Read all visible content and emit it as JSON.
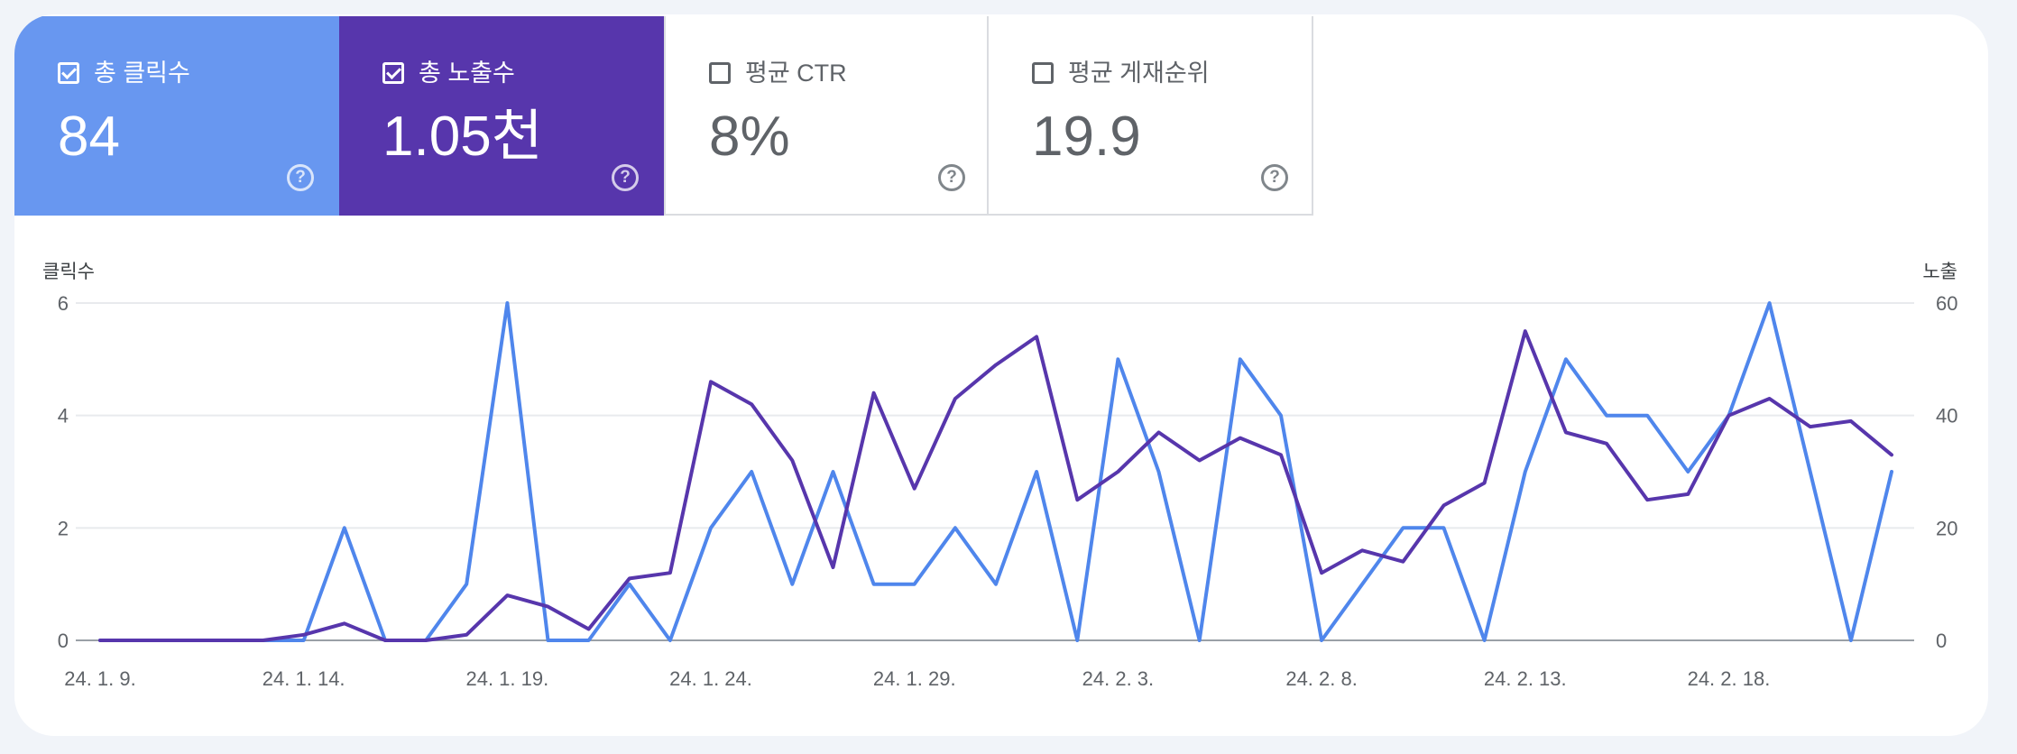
{
  "metrics": [
    {
      "label": "총 클릭수",
      "value": "84",
      "checked": true,
      "color": "#6897f0",
      "help_icon": "?"
    },
    {
      "label": "총 노출수",
      "value": "1.05천",
      "checked": true,
      "color": "#5736ac",
      "help_icon": "?"
    },
    {
      "label": "평균 CTR",
      "value": "8%",
      "checked": false,
      "color": "#ffffff",
      "help_icon": "?"
    },
    {
      "label": "평균 게재순위",
      "value": "19.9",
      "checked": false,
      "color": "#ffffff",
      "help_icon": "?"
    }
  ],
  "chart_data": {
    "type": "line",
    "x": [
      "24. 1. 9.",
      "24. 1. 10.",
      "24. 1. 11.",
      "24. 1. 12.",
      "24. 1. 13.",
      "24. 1. 14.",
      "24. 1. 15.",
      "24. 1. 16.",
      "24. 1. 17.",
      "24. 1. 18.",
      "24. 1. 19.",
      "24. 1. 20.",
      "24. 1. 21.",
      "24. 1. 22.",
      "24. 1. 23.",
      "24. 1. 24.",
      "24. 1. 25.",
      "24. 1. 26.",
      "24. 1. 27.",
      "24. 1. 28.",
      "24. 1. 29.",
      "24. 1. 30.",
      "24. 1. 31.",
      "24. 2. 1.",
      "24. 2. 2.",
      "24. 2. 3.",
      "24. 2. 4.",
      "24. 2. 5.",
      "24. 2. 6.",
      "24. 2. 7.",
      "24. 2. 8.",
      "24. 2. 9.",
      "24. 2. 10.",
      "24. 2. 11.",
      "24. 2. 12.",
      "24. 2. 13.",
      "24. 2. 14.",
      "24. 2. 15.",
      "24. 2. 16.",
      "24. 2. 17.",
      "24. 2. 18.",
      "24. 2. 19.",
      "24. 2. 20.",
      "24. 2. 21.",
      "24. 2. 22."
    ],
    "x_tick_labels": [
      "24. 1. 9.",
      "24. 1. 14.",
      "24. 1. 19.",
      "24. 1. 24.",
      "24. 1. 29.",
      "24. 2. 3.",
      "24. 2. 8.",
      "24. 2. 13.",
      "24. 2. 18."
    ],
    "series": [
      {
        "axis": "left",
        "color": "#4f86ec",
        "values": [
          0,
          0,
          0,
          0,
          0,
          0,
          2,
          0,
          0,
          1,
          6,
          0,
          0,
          1,
          0,
          2,
          3,
          1,
          3,
          1,
          1,
          2,
          1,
          3,
          0,
          5,
          3,
          0,
          5,
          4,
          0,
          1,
          2,
          2,
          0,
          3,
          5,
          4,
          4,
          3,
          4,
          6,
          3,
          0,
          3
        ]
      },
      {
        "axis": "right",
        "color": "#5736ac",
        "values": [
          0,
          0,
          0,
          0,
          0,
          1,
          3,
          0,
          0,
          1,
          8,
          6,
          2,
          11,
          12,
          46,
          42,
          32,
          13,
          44,
          27,
          43,
          49,
          54,
          25,
          30,
          37,
          32,
          36,
          33,
          12,
          16,
          14,
          24,
          28,
          55,
          37,
          35,
          25,
          26,
          40,
          43,
          38,
          39,
          33
        ]
      }
    ],
    "left_axis": {
      "title": "클릭수",
      "ticks": [
        "0",
        "2",
        "4",
        "6"
      ],
      "range": [
        0,
        6
      ]
    },
    "right_axis": {
      "title": "노출",
      "ticks": [
        "0",
        "20",
        "40",
        "60"
      ],
      "range": [
        0,
        60
      ]
    },
    "grid": true
  }
}
